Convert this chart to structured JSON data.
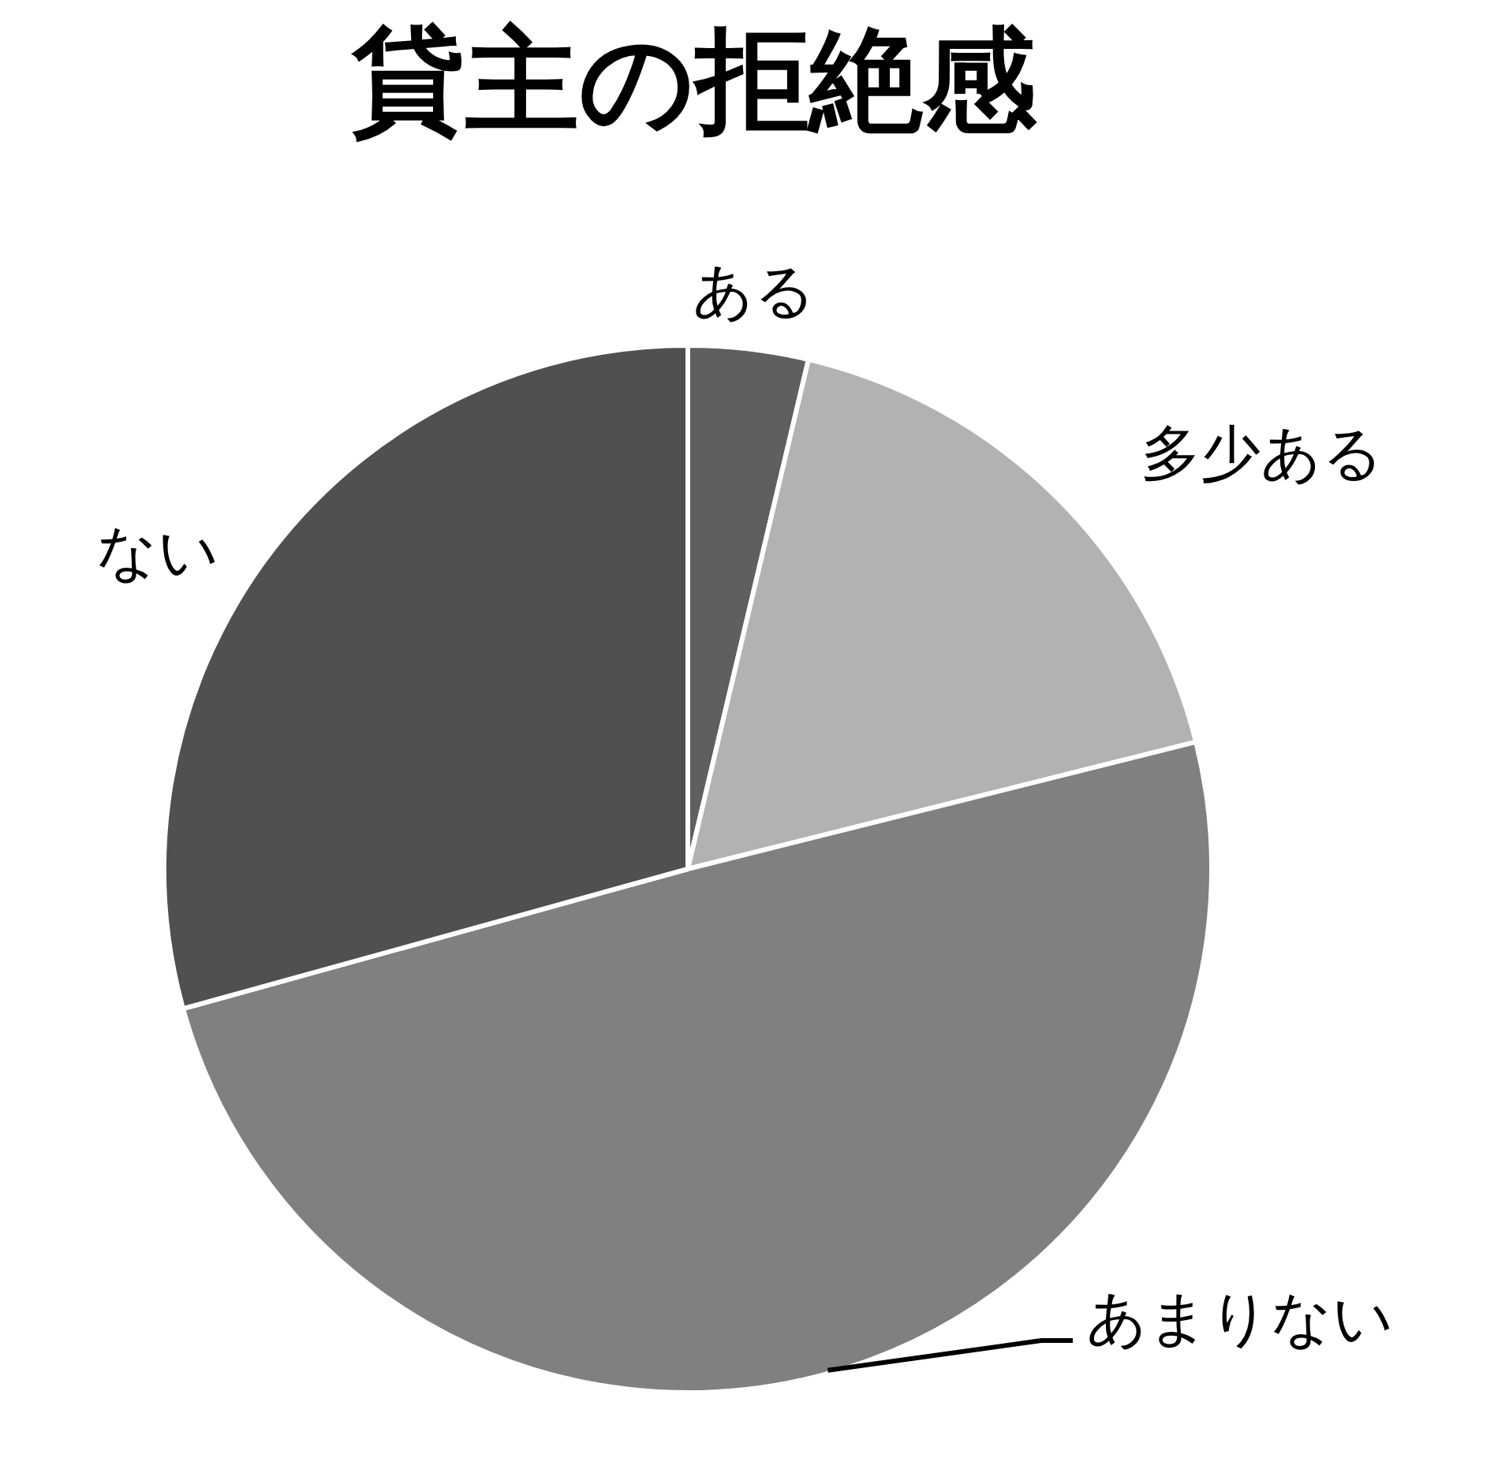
{
  "chart_data": {
    "type": "pie",
    "title": "貸主の拒絶感",
    "categories": [
      "ある",
      "多少ある",
      "あまりない",
      "ない"
    ],
    "values": [
      3.7,
      17.4,
      49.6,
      29.3
    ],
    "colors": [
      "#5f5f5f",
      "#b2b2b2",
      "#808080",
      "#505050"
    ]
  }
}
